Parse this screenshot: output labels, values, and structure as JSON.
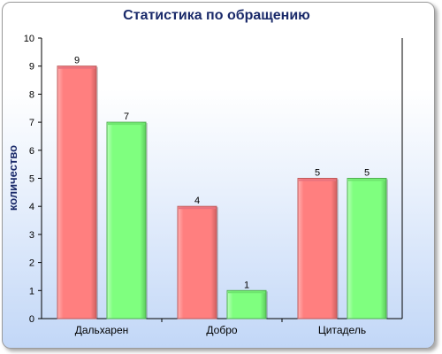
{
  "colors": {
    "series_a": "#ff7f7f",
    "series_a_highlight": "#e8727e",
    "series_b": "#7fff7f",
    "title": "#1a2a6a",
    "axis": "#000000"
  },
  "chart_data": {
    "type": "bar",
    "title": "Статистика по обращению",
    "xlabel": "",
    "ylabel": "количество",
    "ylim": [
      0,
      10
    ],
    "yticks": [
      0,
      1,
      2,
      3,
      4,
      5,
      6,
      7,
      8,
      9,
      10
    ],
    "categories": [
      "Дальхарен",
      "Добро",
      "Цитадель"
    ],
    "series": [
      {
        "values": [
          9,
          4,
          5
        ]
      },
      {
        "values": [
          7,
          1,
          5
        ]
      }
    ],
    "data_labels": true,
    "grid": false,
    "legend": "none"
  }
}
